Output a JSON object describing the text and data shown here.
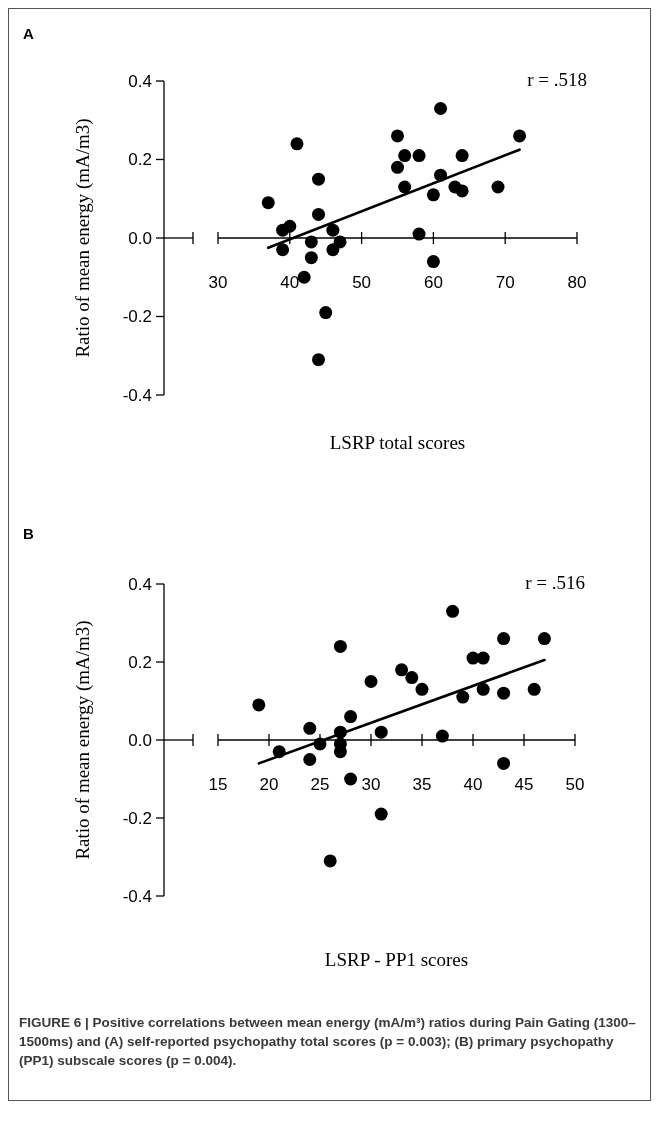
{
  "chart_data": [
    {
      "type": "scatter",
      "title": "A",
      "xlabel": "LSRP total scores",
      "ylabel": "Ratio of mean energy (mA/m3)",
      "xlim": [
        30,
        80
      ],
      "xticks": [
        30,
        40,
        50,
        60,
        70,
        80
      ],
      "ylim": [
        -0.4,
        0.4
      ],
      "yticks": [
        -0.4,
        -0.2,
        {
          "value": 0,
          "label": "0.0"
        },
        0.2,
        0.4
      ],
      "annotations": [
        "r = .518"
      ],
      "series": [
        {
          "type": "scatter",
          "marker": "circle",
          "color": "#000000",
          "x": [
            37,
            39,
            40,
            39,
            41,
            44,
            44,
            43,
            43,
            42,
            46,
            47,
            46,
            45,
            44,
            55,
            55,
            56,
            56,
            58,
            58,
            60,
            60,
            61,
            61,
            63,
            64,
            64,
            69,
            72
          ],
          "values": [
            0.09,
            0.02,
            0.03,
            -0.03,
            0.24,
            0.15,
            0.06,
            -0.01,
            -0.05,
            -0.1,
            0.02,
            -0.01,
            -0.03,
            -0.19,
            -0.31,
            0.26,
            0.18,
            0.21,
            0.13,
            0.21,
            0.01,
            0.11,
            -0.06,
            0.33,
            0.16,
            0.13,
            0.12,
            0.21,
            0.13,
            0.26
          ]
        },
        {
          "type": "line",
          "color": "#000000",
          "x": [
            37,
            72
          ],
          "values": [
            -0.025,
            0.225
          ]
        }
      ]
    },
    {
      "type": "scatter",
      "title": "B",
      "xlabel": "LSRP - PP1 scores",
      "ylabel": "Ratio of mean energy (mA/m3)",
      "xlim": [
        15,
        50
      ],
      "xticks": [
        15,
        20,
        25,
        30,
        35,
        40,
        45,
        50
      ],
      "ylim": [
        -0.4,
        0.4
      ],
      "yticks": [
        -0.4,
        -0.2,
        {
          "value": 0,
          "label": "0.0"
        },
        0.2,
        0.4
      ],
      "annotations": [
        "r = .516",
        "FIGURE 6 | Positive correlations between mean energy (mA/m³) ratios during Pain Gating (1300–1500ms) and (A) self-reported psychopathy total scores (p = 0.003); (B) primary psychopathy (PP1) subscale scores (p = 0.004)."
      ],
      "series": [
        {
          "type": "scatter",
          "marker": "circle",
          "color": "#000000",
          "x": [
            19,
            21,
            24,
            24,
            25,
            27,
            27,
            27,
            27,
            28,
            28,
            30,
            31,
            31,
            33,
            34,
            35,
            26,
            37,
            38,
            39,
            40,
            41,
            41,
            43,
            43,
            43,
            46,
            47
          ],
          "values": [
            0.09,
            -0.03,
            0.03,
            -0.05,
            -0.01,
            0.24,
            0.02,
            -0.01,
            -0.03,
            0.06,
            -0.1,
            0.15,
            0.02,
            -0.19,
            0.18,
            0.16,
            0.13,
            -0.31,
            0.01,
            0.33,
            0.11,
            0.21,
            0.21,
            0.13,
            0.26,
            0.12,
            -0.06,
            0.13,
            0.26
          ]
        },
        {
          "type": "line",
          "color": "#000000",
          "x": [
            19,
            47
          ],
          "values": [
            -0.06,
            0.205
          ]
        }
      ]
    }
  ]
}
